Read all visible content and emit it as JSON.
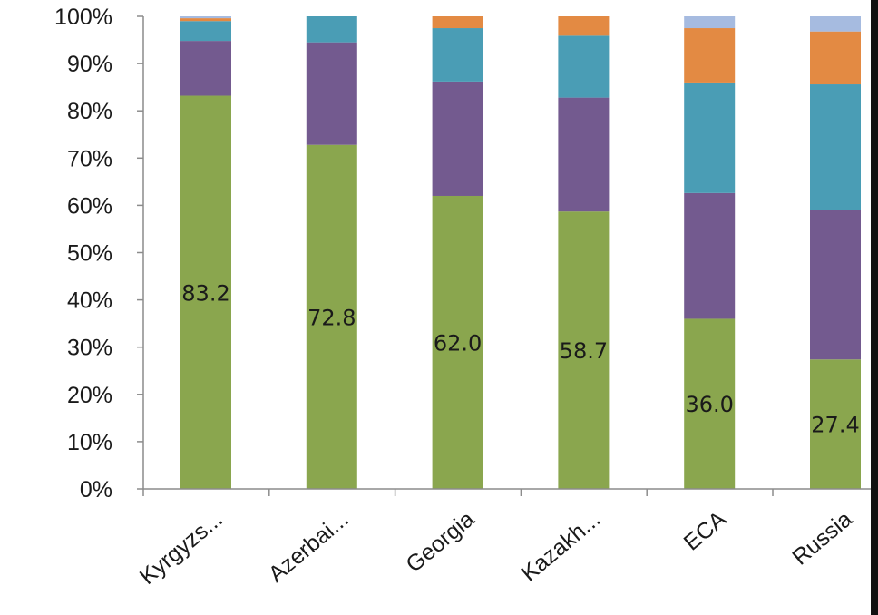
{
  "chart_data": {
    "type": "bar",
    "stacked": true,
    "percent": true,
    "categories": [
      "Kyrgyzs...",
      "Azerbai...",
      "Georgia",
      "Kazakh...",
      "ECA",
      "Russia"
    ],
    "series": [
      {
        "color": "#8aa64e",
        "values": [
          83.2,
          72.8,
          62.0,
          58.7,
          36.0,
          27.4
        ]
      },
      {
        "color": "#735a8f",
        "values": [
          11.6,
          21.7,
          24.2,
          24.1,
          26.6,
          31.6
        ]
      },
      {
        "color": "#4a9db5",
        "values": [
          4.2,
          5.5,
          11.3,
          13.1,
          23.4,
          26.6
        ]
      },
      {
        "color": "#e38a43",
        "values": [
          0.6,
          0.0,
          2.5,
          4.1,
          11.5,
          11.2
        ]
      },
      {
        "color": "#a6bbe0",
        "values": [
          0.4,
          0.0,
          0.0,
          0.0,
          2.5,
          3.2
        ]
      }
    ],
    "data_labels": [
      "83.2",
      "72.8",
      "62.0",
      "58.7",
      "36.0",
      "27.4"
    ],
    "ylim": [
      0,
      100
    ],
    "yticks": [
      "0%",
      "10%",
      "20%",
      "30%",
      "40%",
      "50%",
      "60%",
      "70%",
      "80%",
      "90%",
      "100%"
    ],
    "grid": false,
    "legend": "none"
  }
}
